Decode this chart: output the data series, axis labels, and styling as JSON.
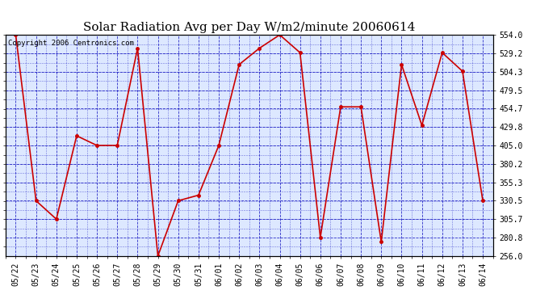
{
  "title": "Solar Radiation Avg per Day W/m2/minute 20060614",
  "copyright": "Copyright 2006 Centronics.com",
  "dates": [
    "05/22",
    "05/23",
    "05/24",
    "05/25",
    "05/26",
    "05/27",
    "05/28",
    "05/29",
    "05/30",
    "05/31",
    "06/01",
    "06/02",
    "06/03",
    "06/04",
    "06/05",
    "06/06",
    "06/07",
    "06/08",
    "06/09",
    "06/10",
    "06/11",
    "06/12",
    "06/13",
    "06/14"
  ],
  "values": [
    554.0,
    330.5,
    305.7,
    418.0,
    405.0,
    405.0,
    536.0,
    256.0,
    330.5,
    338.0,
    405.0,
    514.0,
    536.0,
    554.0,
    530.0,
    281.0,
    457.0,
    457.0,
    275.0,
    514.0,
    432.0,
    530.0,
    505.0,
    330.5
  ],
  "line_color": "#cc0000",
  "marker_color": "#cc0000",
  "grid_color": "#0000bb",
  "bg_color": "#ffffff",
  "plot_bg_color": "#dde8ff",
  "ylim_min": 256.0,
  "ylim_max": 554.0,
  "yticks": [
    256.0,
    280.8,
    305.7,
    330.5,
    355.3,
    380.2,
    405.0,
    429.8,
    454.7,
    479.5,
    504.3,
    529.2,
    554.0
  ],
  "title_fontsize": 11,
  "label_fontsize": 7,
  "copyright_fontsize": 6.5
}
